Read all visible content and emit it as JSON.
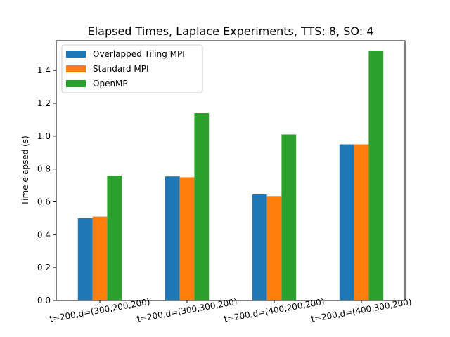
{
  "chart_data": {
    "type": "bar",
    "title": "Elapsed Times, Laplace Experiments, TTS: 8, SO: 4",
    "xlabel": "",
    "ylabel": "Time elapsed (s)",
    "ylim": [
      0,
      1.58
    ],
    "yticks": [
      "0.0",
      "0.2",
      "0.4",
      "0.6",
      "0.8",
      "1.0",
      "1.2",
      "1.4"
    ],
    "categories": [
      "t=200,d=(300,200,200)",
      "t=200,d=(300,300,200)",
      "t=200,d=(400,200,200)",
      "t=200,d=(400,300,200)"
    ],
    "series": [
      {
        "name": "Overlapped Tiling MPI",
        "color": "#1f77b4",
        "values": [
          0.5,
          0.755,
          0.645,
          0.95
        ]
      },
      {
        "name": "Standard MPI",
        "color": "#ff7f0e",
        "values": [
          0.51,
          0.75,
          0.635,
          0.95
        ]
      },
      {
        "name": "OpenMP",
        "color": "#2ca02c",
        "values": [
          0.76,
          1.14,
          1.01,
          1.52
        ]
      }
    ],
    "legend": "top-left",
    "grid": false
  }
}
